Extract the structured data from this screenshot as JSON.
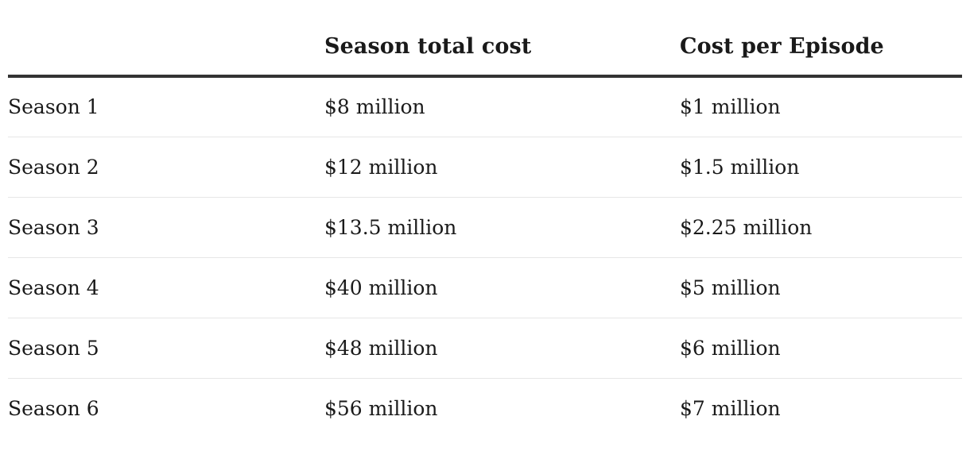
{
  "table": {
    "headers": [
      "",
      "Season total cost",
      "Cost per Episode"
    ],
    "rows": [
      [
        "Season 1",
        "$8 million",
        "$1 million"
      ],
      [
        "Season 2",
        "$12 million",
        "$1.5 million"
      ],
      [
        "Season 3",
        "$13.5 million",
        "$2.25 million"
      ],
      [
        "Season 4",
        "$40 million",
        "$5 million"
      ],
      [
        "Season 5",
        "$48 million",
        "$6 million"
      ],
      [
        "Season 6",
        "$56 million",
        "$7 million"
      ]
    ]
  },
  "colors": {
    "text": "#1a1a1a",
    "header_rule": "#333333",
    "row_divider": "#e6e6e6",
    "background": "#ffffff"
  }
}
